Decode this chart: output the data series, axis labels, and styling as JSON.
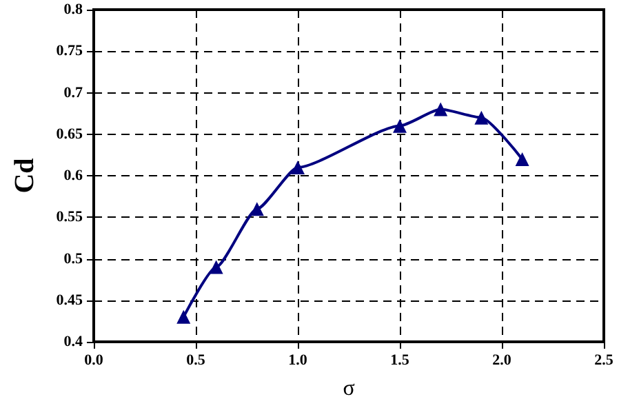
{
  "chart_data": {
    "type": "line",
    "xlabel": "σ",
    "ylabel": "Cd",
    "x": [
      0.44,
      0.6,
      0.8,
      1.0,
      1.5,
      1.7,
      1.9,
      2.1
    ],
    "series": [
      {
        "color": "#000080",
        "values": [
          0.43,
          0.49,
          0.56,
          0.61,
          0.66,
          0.68,
          0.67,
          0.62
        ]
      }
    ],
    "xlim": [
      0,
      2.5
    ],
    "xticks": [
      {
        "value": 0,
        "label": "0.0"
      },
      {
        "value": 0.5,
        "label": "0.5"
      },
      {
        "value": 1,
        "label": "1.0"
      },
      {
        "value": 1.5,
        "label": "1.5"
      },
      {
        "value": 2,
        "label": "2.0"
      },
      {
        "value": 2.5,
        "label": "2.5"
      }
    ],
    "ylim": [
      0.4,
      0.8
    ],
    "yticks": [
      0.4,
      0.45,
      0.5,
      0.55,
      0.6,
      0.65,
      0.7,
      0.75,
      0.8
    ],
    "grid": true,
    "marker": "triangle",
    "line_style": "solid"
  }
}
